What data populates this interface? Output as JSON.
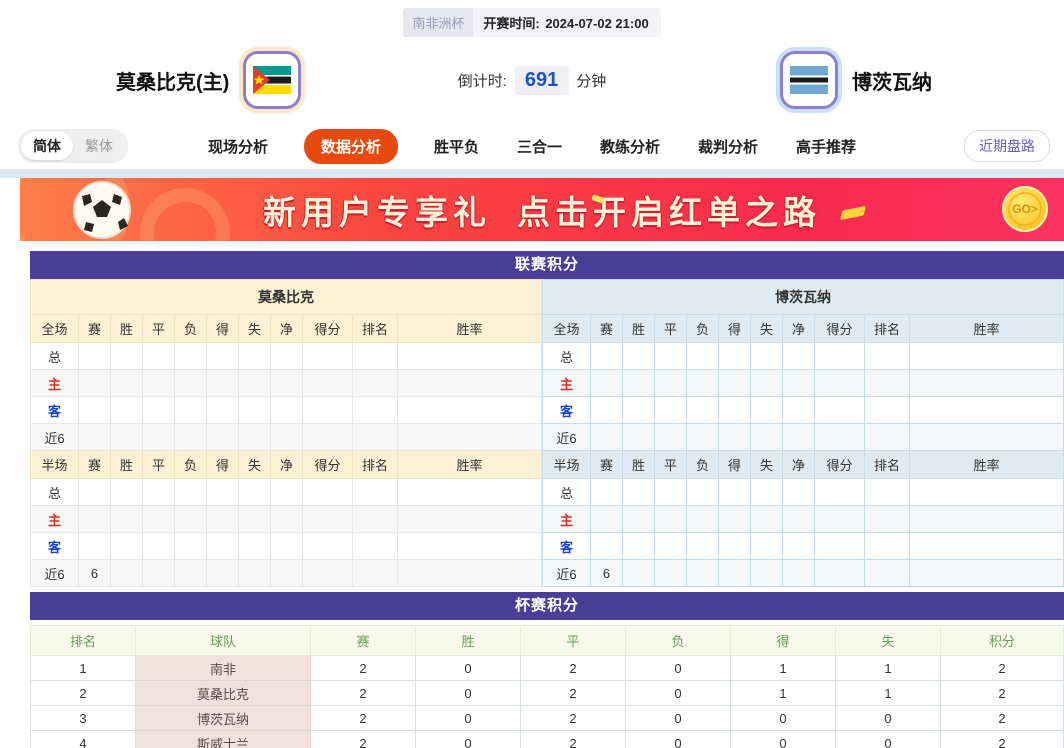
{
  "colors": {
    "accent_purple": "#4a3e99",
    "active_tab_orange": "#e8490f",
    "countdown_blue": "#1d52c4",
    "banner_red": "#f92a4e",
    "home_cream": "#fcf0d5",
    "away_blue": "#dfeaf2"
  },
  "header": {
    "league_badge": "南非洲杯",
    "kickoff_label": "开赛时间:",
    "kickoff_time": "2024-07-02 21:00",
    "home_team": "莫桑比克(主)",
    "away_team": "博茨瓦纳",
    "countdown_label": "倒计时:",
    "countdown_value": "691",
    "countdown_unit": "分钟"
  },
  "nav": {
    "lang_simplified": "简体",
    "lang_traditional": "繁体",
    "tabs": [
      {
        "label": "现场分析",
        "active": false
      },
      {
        "label": "数据分析",
        "active": true
      },
      {
        "label": "胜平负",
        "active": false
      },
      {
        "label": "三合一",
        "active": false
      },
      {
        "label": "教练分析",
        "active": false
      },
      {
        "label": "裁判分析",
        "active": false
      },
      {
        "label": "高手推荐",
        "active": false
      }
    ],
    "recent_button": "近期盘路"
  },
  "banner": {
    "text1": "新用户专享礼",
    "text2": "点击开启红单之路",
    "go_label": "GO>"
  },
  "league_table": {
    "title": "联赛积分",
    "home_team": "莫桑比克",
    "away_team": "博茨瓦纳",
    "stat_headers": [
      "赛",
      "胜",
      "平",
      "负",
      "得",
      "失",
      "净",
      "得分",
      "排名",
      "胜率"
    ],
    "sections": [
      {
        "scope_label": "全场",
        "rows": [
          {
            "label": "总",
            "home": [
              "",
              "",
              "",
              "",
              "",
              "",
              "",
              "",
              "",
              ""
            ],
            "away": [
              "",
              "",
              "",
              "",
              "",
              "",
              "",
              "",
              "",
              ""
            ]
          },
          {
            "label": "主",
            "home": [
              "",
              "",
              "",
              "",
              "",
              "",
              "",
              "",
              "",
              ""
            ],
            "away": [
              "",
              "",
              "",
              "",
              "",
              "",
              "",
              "",
              "",
              ""
            ]
          },
          {
            "label": "客",
            "home": [
              "",
              "",
              "",
              "",
              "",
              "",
              "",
              "",
              "",
              ""
            ],
            "away": [
              "",
              "",
              "",
              "",
              "",
              "",
              "",
              "",
              "",
              ""
            ]
          },
          {
            "label": "近6",
            "home": [
              "",
              "",
              "",
              "",
              "",
              "",
              "",
              "",
              "",
              ""
            ],
            "away": [
              "",
              "",
              "",
              "",
              "",
              "",
              "",
              "",
              "",
              ""
            ]
          }
        ]
      },
      {
        "scope_label": "半场",
        "rows": [
          {
            "label": "总",
            "home": [
              "",
              "",
              "",
              "",
              "",
              "",
              "",
              "",
              "",
              ""
            ],
            "away": [
              "",
              "",
              "",
              "",
              "",
              "",
              "",
              "",
              "",
              ""
            ]
          },
          {
            "label": "主",
            "home": [
              "",
              "",
              "",
              "",
              "",
              "",
              "",
              "",
              "",
              ""
            ],
            "away": [
              "",
              "",
              "",
              "",
              "",
              "",
              "",
              "",
              "",
              ""
            ]
          },
          {
            "label": "客",
            "home": [
              "",
              "",
              "",
              "",
              "",
              "",
              "",
              "",
              "",
              ""
            ],
            "away": [
              "",
              "",
              "",
              "",
              "",
              "",
              "",
              "",
              "",
              ""
            ]
          },
          {
            "label": "近6",
            "home": [
              "6",
              "",
              "",
              "",
              "",
              "",
              "",
              "",
              "",
              ""
            ],
            "away": [
              "6",
              "",
              "",
              "",
              "",
              "",
              "",
              "",
              "",
              ""
            ]
          }
        ]
      }
    ]
  },
  "cup_table": {
    "title": "杯赛积分",
    "headers": [
      "排名",
      "球队",
      "赛",
      "胜",
      "平",
      "负",
      "得",
      "失",
      "积分"
    ],
    "rows": [
      [
        "1",
        "南非",
        "2",
        "0",
        "2",
        "0",
        "1",
        "1",
        "2"
      ],
      [
        "2",
        "莫桑比克",
        "2",
        "0",
        "2",
        "0",
        "1",
        "1",
        "2"
      ],
      [
        "3",
        "博茨瓦纳",
        "2",
        "0",
        "2",
        "0",
        "0",
        "0",
        "2"
      ],
      [
        "4",
        "斯威士兰",
        "2",
        "0",
        "2",
        "0",
        "0",
        "0",
        "2"
      ]
    ]
  }
}
